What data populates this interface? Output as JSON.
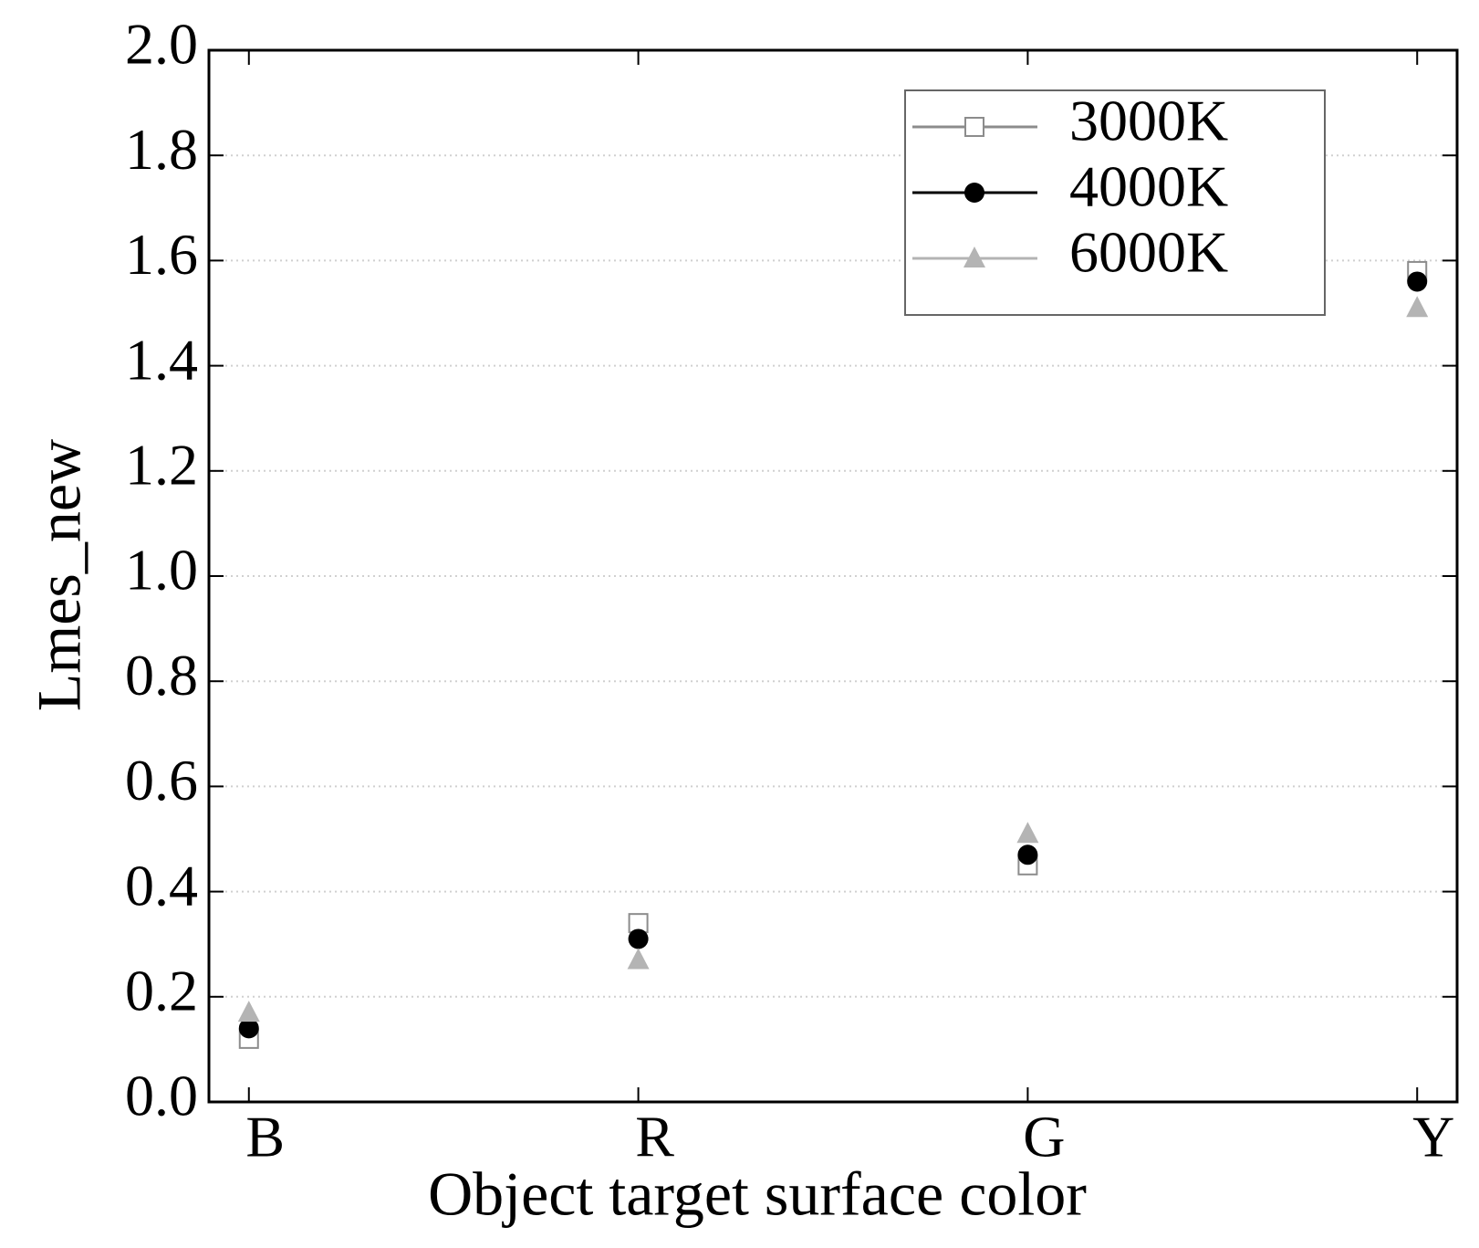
{
  "chart_data": {
    "type": "scatter",
    "x_label": "Object target surface color",
    "y_label": "Lmes_new",
    "categories": [
      "B",
      "R",
      "G",
      "Y"
    ],
    "series": [
      {
        "name": "3000K",
        "color": "#8c8c8c",
        "marker": "square-open",
        "values": [
          0.12,
          0.34,
          0.45,
          1.58
        ]
      },
      {
        "name": "4000K",
        "color": "#000000",
        "marker": "circle",
        "values": [
          0.14,
          0.31,
          0.47,
          1.56
        ]
      },
      {
        "name": "6000K",
        "color": "#b4b4b4",
        "marker": "triangle",
        "values": [
          0.17,
          0.27,
          0.51,
          1.51
        ]
      }
    ],
    "ylim": [
      0,
      2
    ],
    "yticks": [
      {
        "value": 0,
        "label": "0.0"
      },
      0.2,
      0.4,
      0.6,
      0.8,
      {
        "value": 1,
        "label": "1.0"
      },
      1.2,
      1.4,
      1.6,
      1.8,
      {
        "value": 2,
        "label": "2.0"
      }
    ],
    "grid": true,
    "legend": "upper right"
  }
}
